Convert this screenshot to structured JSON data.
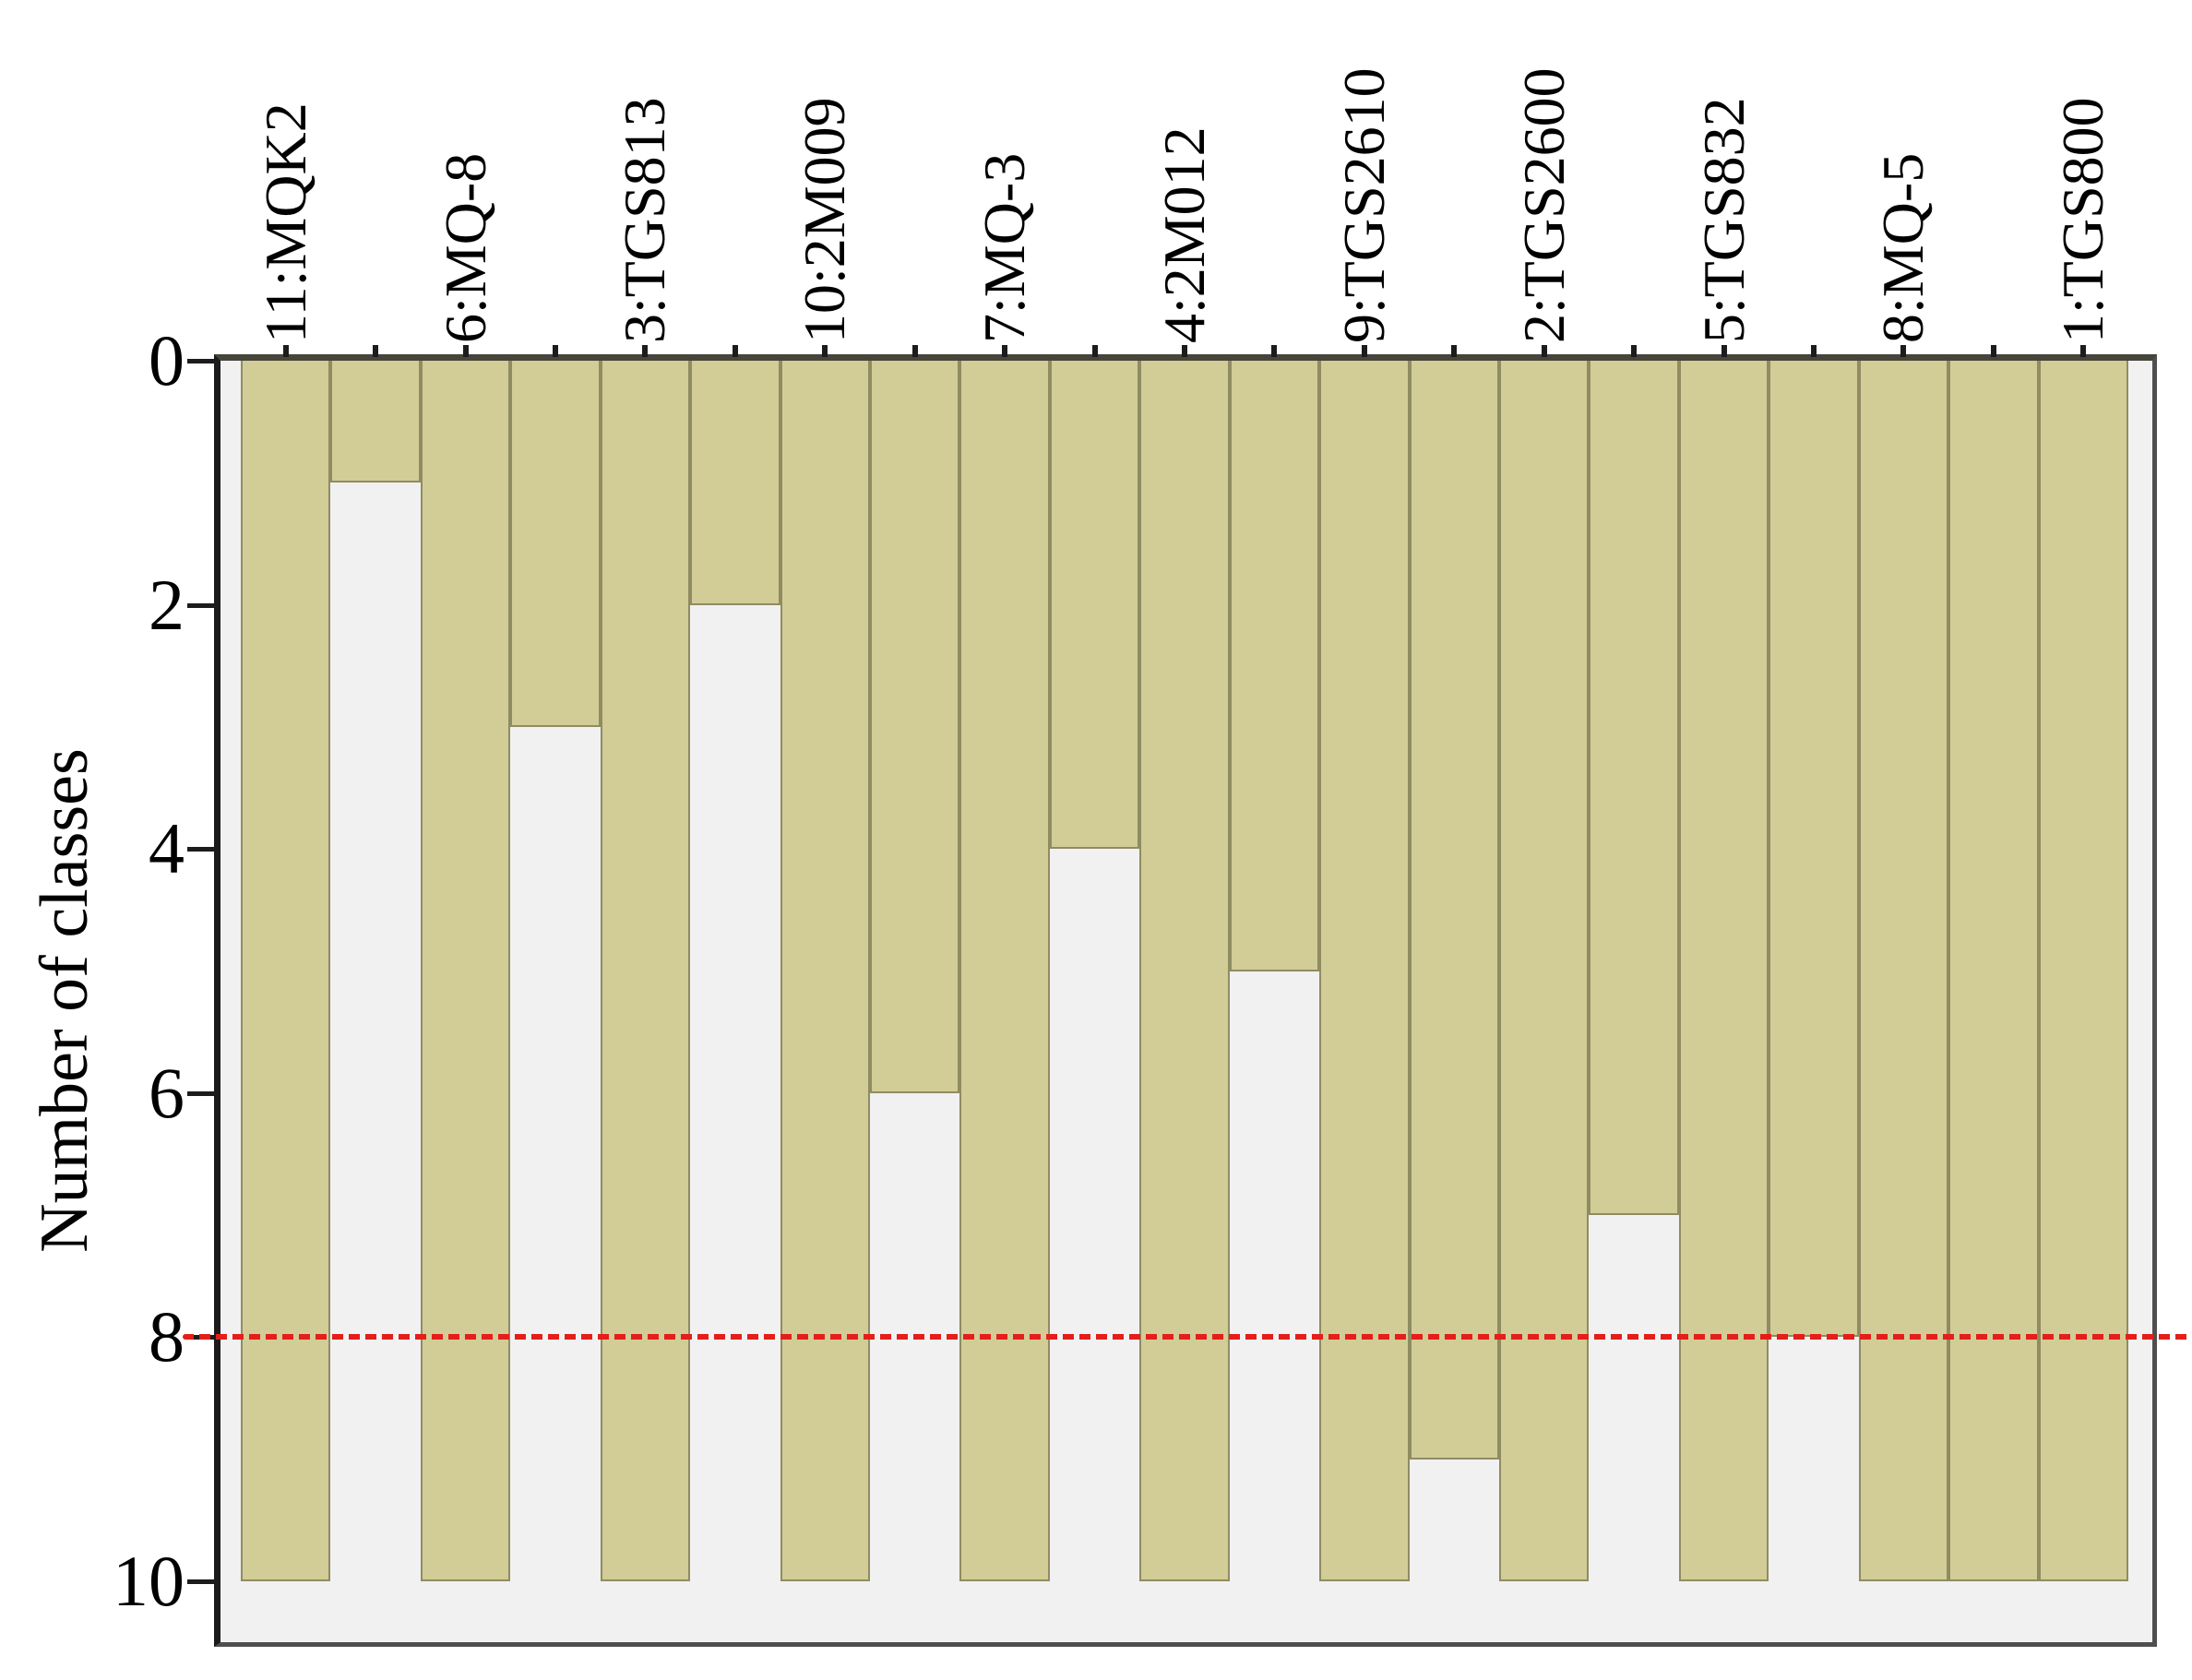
{
  "chart_data": {
    "type": "bar",
    "title": "",
    "xlabel": "",
    "ylabel": "Number of classes",
    "y_axis": {
      "min": 0,
      "max": 10,
      "inverted": true,
      "tick_labels": [
        "0",
        "2",
        "4",
        "6",
        "8",
        "10"
      ],
      "tick_values": [
        0,
        2,
        4,
        6,
        8,
        10
      ]
    },
    "grid": "off",
    "legend": "none",
    "categories": [
      "11:MQK2",
      "6:MQ-8",
      "3:TGS813",
      "10:2M009",
      "7:MQ-3",
      "4:2M012",
      "9:TGS2610",
      "2:TGS2600",
      "5:TGS832",
      "8:MQ-5",
      "1:TGS800"
    ],
    "category_bar_indices": [
      0,
      2,
      4,
      6,
      8,
      10,
      12,
      14,
      16,
      18,
      20
    ],
    "bar_values": [
      10,
      1,
      10,
      3,
      10,
      2,
      10,
      6,
      10,
      4,
      10,
      5,
      10,
      9,
      10,
      7,
      10,
      8,
      10,
      10,
      10
    ],
    "bars_hang_from_top": true,
    "threshold_line": {
      "value": 8,
      "style": "dashed",
      "color": "#e41e1a"
    },
    "colors": {
      "bar_fill": "#d2cc96",
      "bar_border": "#8f8c62",
      "plot_background": "#f1f1f2",
      "frame": "#4f4f4f",
      "axis": "#1b1b1b",
      "threshold": "#e41e1a",
      "text": "#000000"
    }
  }
}
